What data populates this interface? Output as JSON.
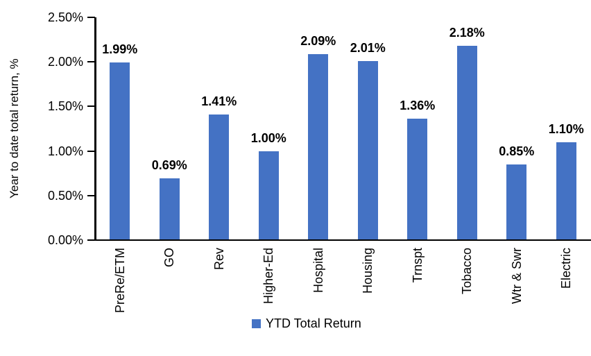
{
  "chart_data": {
    "type": "bar",
    "title": "",
    "xlabel": "",
    "ylabel": "Year to date total return, %",
    "categories": [
      "PreRe/ETM",
      "GO",
      "Rev",
      "Higher-Ed",
      "Hospital",
      "Housing",
      "Trnspt",
      "Tobacco",
      "Wtr & Swr",
      "Electric"
    ],
    "values": [
      1.99,
      0.69,
      1.41,
      1.0,
      2.09,
      2.01,
      1.36,
      2.18,
      0.85,
      1.1
    ],
    "data_labels": [
      "1.99%",
      "0.69%",
      "1.41%",
      "1.00%",
      "2.09%",
      "2.01%",
      "1.36%",
      "2.18%",
      "0.85%",
      "1.10%"
    ],
    "y_ticks": [
      "2.50%",
      "2.00%",
      "1.50%",
      "1.00%",
      "0.50%",
      "0.00%"
    ],
    "ylim": [
      0,
      2.5
    ],
    "grid": false,
    "bar_color": "#4472C4",
    "axis_color": "#000000",
    "legend_position": "bottom",
    "legend": [
      {
        "label": "YTD Total Return",
        "color": "#4472C4"
      }
    ]
  }
}
